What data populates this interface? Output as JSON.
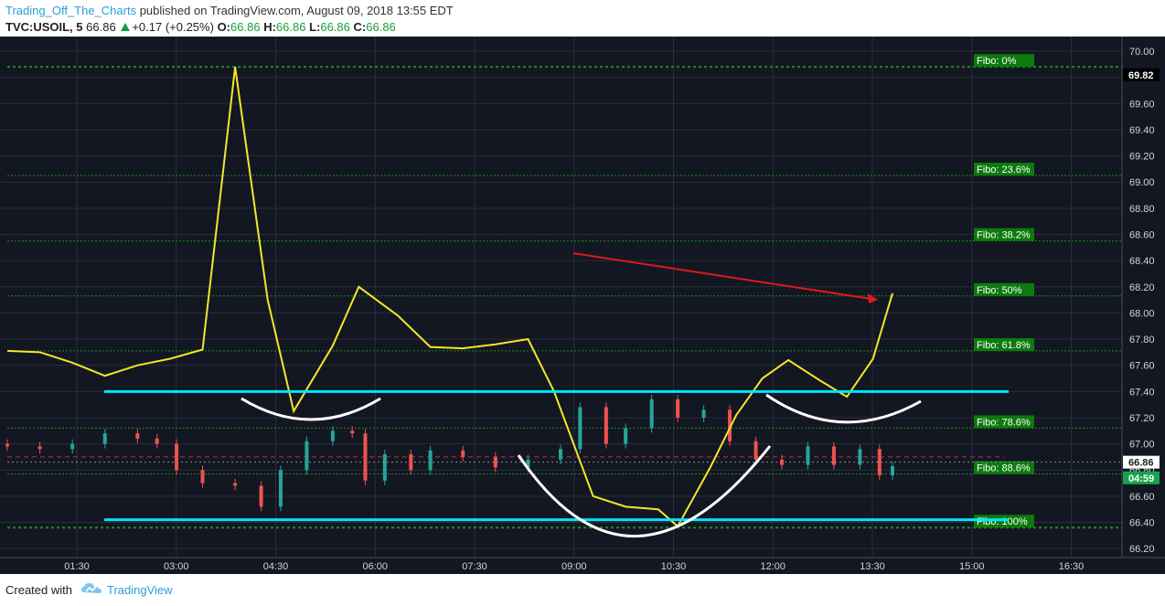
{
  "header": {
    "author": "Trading_Off_The_Charts",
    "published": "published on TradingView.com, August 09, 2018 13:55 EDT",
    "symbol": "TVC:USOIL, 5",
    "last": "66.86",
    "change": "+0.17 (+0.25%)",
    "o_label": "O:",
    "o_value": "66.86",
    "h_label": "H:",
    "h_value": "66.86",
    "l_label": "L:",
    "l_value": "66.86",
    "c_label": "C:",
    "c_value": "66.86"
  },
  "footer": {
    "created_with": "Created with",
    "brand": "TradingView"
  },
  "colors": {
    "background": "#131722",
    "grid": "#2a2e39",
    "axis_text": "#d1d4dc",
    "fib_line": "#1e8c1e",
    "fib_label_bg": "#0d7a0d",
    "cyan": "#00e5ff",
    "yellow": "#f5e62b",
    "red_arrow": "#e0181b",
    "white_curve": "#ffffff",
    "candle_up": "#26a69a",
    "candle_down": "#ef5350"
  },
  "chart_data": {
    "type": "line",
    "instrument": "TVC:USOIL, 5",
    "x_ticks": [
      "01:30",
      "03:00",
      "04:30",
      "06:00",
      "07:30",
      "09:00",
      "10:30",
      "12:00",
      "13:30",
      "15:00",
      "16:30"
    ],
    "y_ticks": [
      "66.20",
      "66.40",
      "66.60",
      "66.80",
      "67.00",
      "67.20",
      "67.40",
      "67.60",
      "67.80",
      "68.00",
      "68.20",
      "68.40",
      "68.60",
      "68.80",
      "69.00",
      "69.20",
      "69.40",
      "69.60",
      "69.80",
      "70.00"
    ],
    "ylim": [
      66.16,
      70.06
    ],
    "price_labels": [
      {
        "text": "69.82",
        "value": 69.82,
        "style": "dark"
      },
      {
        "text": "66.86",
        "value": 66.86,
        "style": "light"
      },
      {
        "text": "04:59",
        "value": 66.74,
        "style": "green"
      }
    ],
    "fibonacci": [
      {
        "label": "Fibo:    0%",
        "price": 69.88
      },
      {
        "label": "Fibo: 23.6%",
        "price": 69.05
      },
      {
        "label": "Fibo: 38.2%",
        "price": 68.55
      },
      {
        "label": "Fibo:   50%",
        "price": 68.13
      },
      {
        "label": "Fibo: 61.8%",
        "price": 67.71
      },
      {
        "label": "Fibo: 78.6%",
        "price": 67.12
      },
      {
        "label": "Fibo: 88.6%",
        "price": 66.77
      },
      {
        "label": "Fibo: 100%",
        "price": 66.36
      }
    ],
    "reference_prices": {
      "current_dashed": 66.86,
      "red_dashed": 66.9
    },
    "support_resistance": [
      67.4,
      66.42
    ],
    "overlay_series": [
      {
        "t": 0.0,
        "v": 67.71
      },
      {
        "t": 0.5,
        "v": 67.7
      },
      {
        "t": 1.0,
        "v": 67.62
      },
      {
        "t": 1.5,
        "v": 67.52
      },
      {
        "t": 2.0,
        "v": 67.6
      },
      {
        "t": 2.5,
        "v": 67.65
      },
      {
        "t": 3.0,
        "v": 67.72
      },
      {
        "t": 3.5,
        "v": 69.88
      },
      {
        "t": 4.0,
        "v": 68.1
      },
      {
        "t": 4.4,
        "v": 67.25
      },
      {
        "t": 5.0,
        "v": 67.75
      },
      {
        "t": 5.4,
        "v": 68.2
      },
      {
        "t": 6.0,
        "v": 67.98
      },
      {
        "t": 6.5,
        "v": 67.74
      },
      {
        "t": 7.0,
        "v": 67.73
      },
      {
        "t": 7.5,
        "v": 67.76
      },
      {
        "t": 8.0,
        "v": 67.8
      },
      {
        "t": 8.4,
        "v": 67.4
      },
      {
        "t": 9.0,
        "v": 66.6
      },
      {
        "t": 9.5,
        "v": 66.52
      },
      {
        "t": 10.0,
        "v": 66.5
      },
      {
        "t": 10.3,
        "v": 66.37
      },
      {
        "t": 10.8,
        "v": 66.82
      },
      {
        "t": 11.2,
        "v": 67.22
      },
      {
        "t": 11.6,
        "v": 67.5
      },
      {
        "t": 12.0,
        "v": 67.64
      },
      {
        "t": 12.5,
        "v": 67.48
      },
      {
        "t": 12.9,
        "v": 67.36
      },
      {
        "t": 13.3,
        "v": 67.65
      },
      {
        "t": 13.6,
        "v": 68.15
      }
    ],
    "candles": [
      {
        "t": 0.0,
        "o": 67.0,
        "c": 66.98
      },
      {
        "t": 0.5,
        "o": 66.98,
        "c": 66.96
      },
      {
        "t": 1.0,
        "o": 66.96,
        "c": 67.0
      },
      {
        "t": 1.5,
        "o": 67.0,
        "c": 67.08
      },
      {
        "t": 2.0,
        "o": 67.08,
        "c": 67.04
      },
      {
        "t": 2.3,
        "o": 67.04,
        "c": 67.0
      },
      {
        "t": 2.6,
        "o": 67.0,
        "c": 66.8
      },
      {
        "t": 3.0,
        "o": 66.8,
        "c": 66.7
      },
      {
        "t": 3.5,
        "o": 66.7,
        "c": 66.68
      },
      {
        "t": 3.9,
        "o": 66.68,
        "c": 66.52
      },
      {
        "t": 4.2,
        "o": 66.52,
        "c": 66.8
      },
      {
        "t": 4.6,
        "o": 66.8,
        "c": 67.02
      },
      {
        "t": 5.0,
        "o": 67.02,
        "c": 67.1
      },
      {
        "t": 5.3,
        "o": 67.1,
        "c": 67.08
      },
      {
        "t": 5.5,
        "o": 67.08,
        "c": 66.72
      },
      {
        "t": 5.8,
        "o": 66.72,
        "c": 66.92
      },
      {
        "t": 6.2,
        "o": 66.92,
        "c": 66.8
      },
      {
        "t": 6.5,
        "o": 66.8,
        "c": 66.95
      },
      {
        "t": 7.0,
        "o": 66.95,
        "c": 66.9
      },
      {
        "t": 7.5,
        "o": 66.9,
        "c": 66.82
      },
      {
        "t": 8.0,
        "o": 66.82,
        "c": 66.88
      },
      {
        "t": 8.5,
        "o": 66.88,
        "c": 66.96
      },
      {
        "t": 8.8,
        "o": 66.96,
        "c": 67.28
      },
      {
        "t": 9.2,
        "o": 67.28,
        "c": 67.0
      },
      {
        "t": 9.5,
        "o": 67.0,
        "c": 67.12
      },
      {
        "t": 9.9,
        "o": 67.12,
        "c": 67.34
      },
      {
        "t": 10.3,
        "o": 67.34,
        "c": 67.2
      },
      {
        "t": 10.7,
        "o": 67.2,
        "c": 67.26
      },
      {
        "t": 11.1,
        "o": 67.26,
        "c": 67.02
      },
      {
        "t": 11.5,
        "o": 67.02,
        "c": 66.88
      },
      {
        "t": 11.9,
        "o": 66.88,
        "c": 66.84
      },
      {
        "t": 12.3,
        "o": 66.84,
        "c": 66.98
      },
      {
        "t": 12.7,
        "o": 66.98,
        "c": 66.84
      },
      {
        "t": 13.1,
        "o": 66.84,
        "c": 66.96
      },
      {
        "t": 13.4,
        "o": 66.96,
        "c": 66.76
      },
      {
        "t": 13.6,
        "o": 66.76,
        "c": 66.83
      }
    ]
  }
}
